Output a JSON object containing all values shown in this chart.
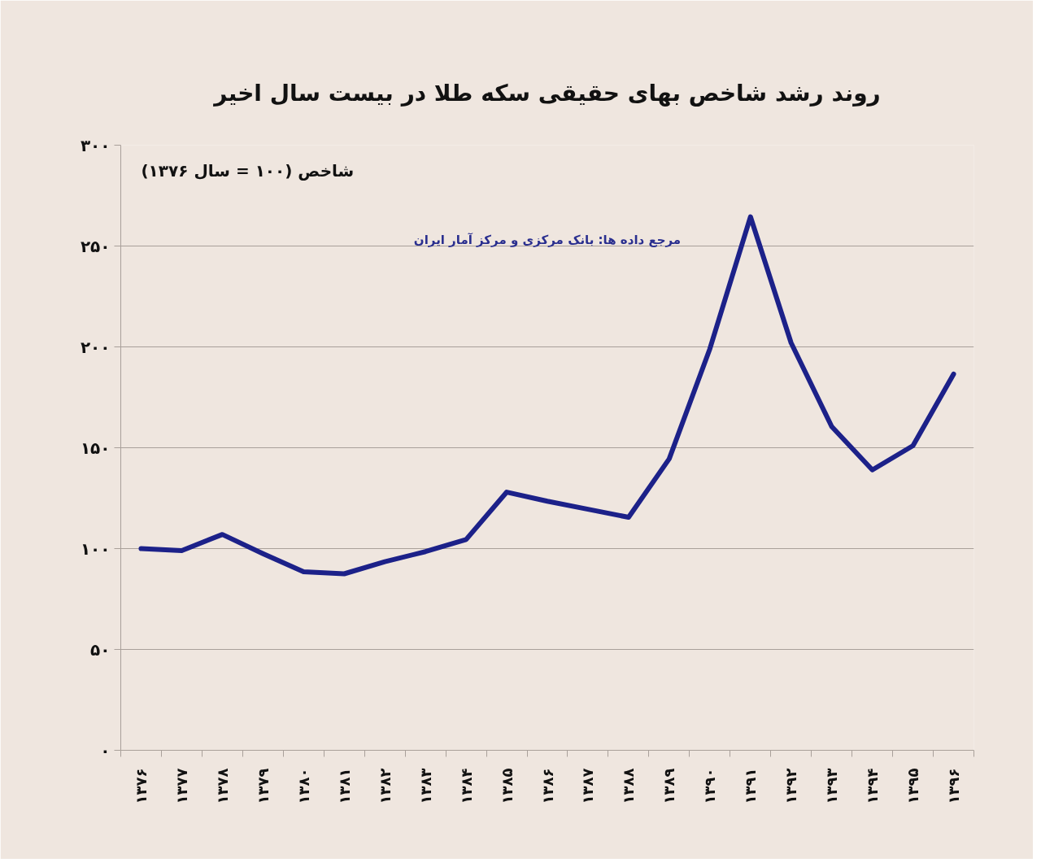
{
  "chart_data": {
    "type": "line",
    "title": "روند رشد شاخص بهای حقیقی سکه طلا در بیست سال اخیر",
    "ylabel": "شاخص (۱۰۰ = سال ۱۳۷۶)",
    "annotations": [
      "مرجع داده ها: بانک مرکزی و مرکز آمار ایران"
    ],
    "categories": [
      "۱۳۷۶",
      "۱۳۷۷",
      "۱۳۷۸",
      "۱۳۷۹",
      "۱۳۸۰",
      "۱۳۸۱",
      "۱۳۸۲",
      "۱۳۸۳",
      "۱۳۸۴",
      "۱۳۸۵",
      "۱۳۸۶",
      "۱۳۸۷",
      "۱۳۸۸",
      "۱۳۸۹",
      "۱۳۹۰",
      "۱۳۹۱",
      "۱۳۹۲",
      "۱۳۹۳",
      "۱۳۹۴",
      "۱۳۹۵",
      "۱۳۹۶"
    ],
    "series": [
      {
        "color": "#1c2189",
        "values": [
          100,
          99,
          107,
          97.5,
          88.5,
          87.5,
          93.5,
          98.5,
          104.5,
          128,
          123.5,
          119.5,
          115.5,
          144.5,
          199,
          264.5,
          202,
          160.5,
          139,
          151,
          186.5
        ]
      }
    ],
    "ylim": [
      0,
      300
    ],
    "yticks": [
      {
        "value": 0,
        "label": "۰"
      },
      {
        "value": 50,
        "label": "۵۰"
      },
      {
        "value": 100,
        "label": "۱۰۰"
      },
      {
        "value": 150,
        "label": "۱۵۰"
      },
      {
        "value": 200,
        "label": "۲۰۰"
      },
      {
        "value": 250,
        "label": "۲۵۰"
      },
      {
        "value": 300,
        "label": "۳۰۰"
      }
    ],
    "grid": "y",
    "line_style": "solid"
  }
}
